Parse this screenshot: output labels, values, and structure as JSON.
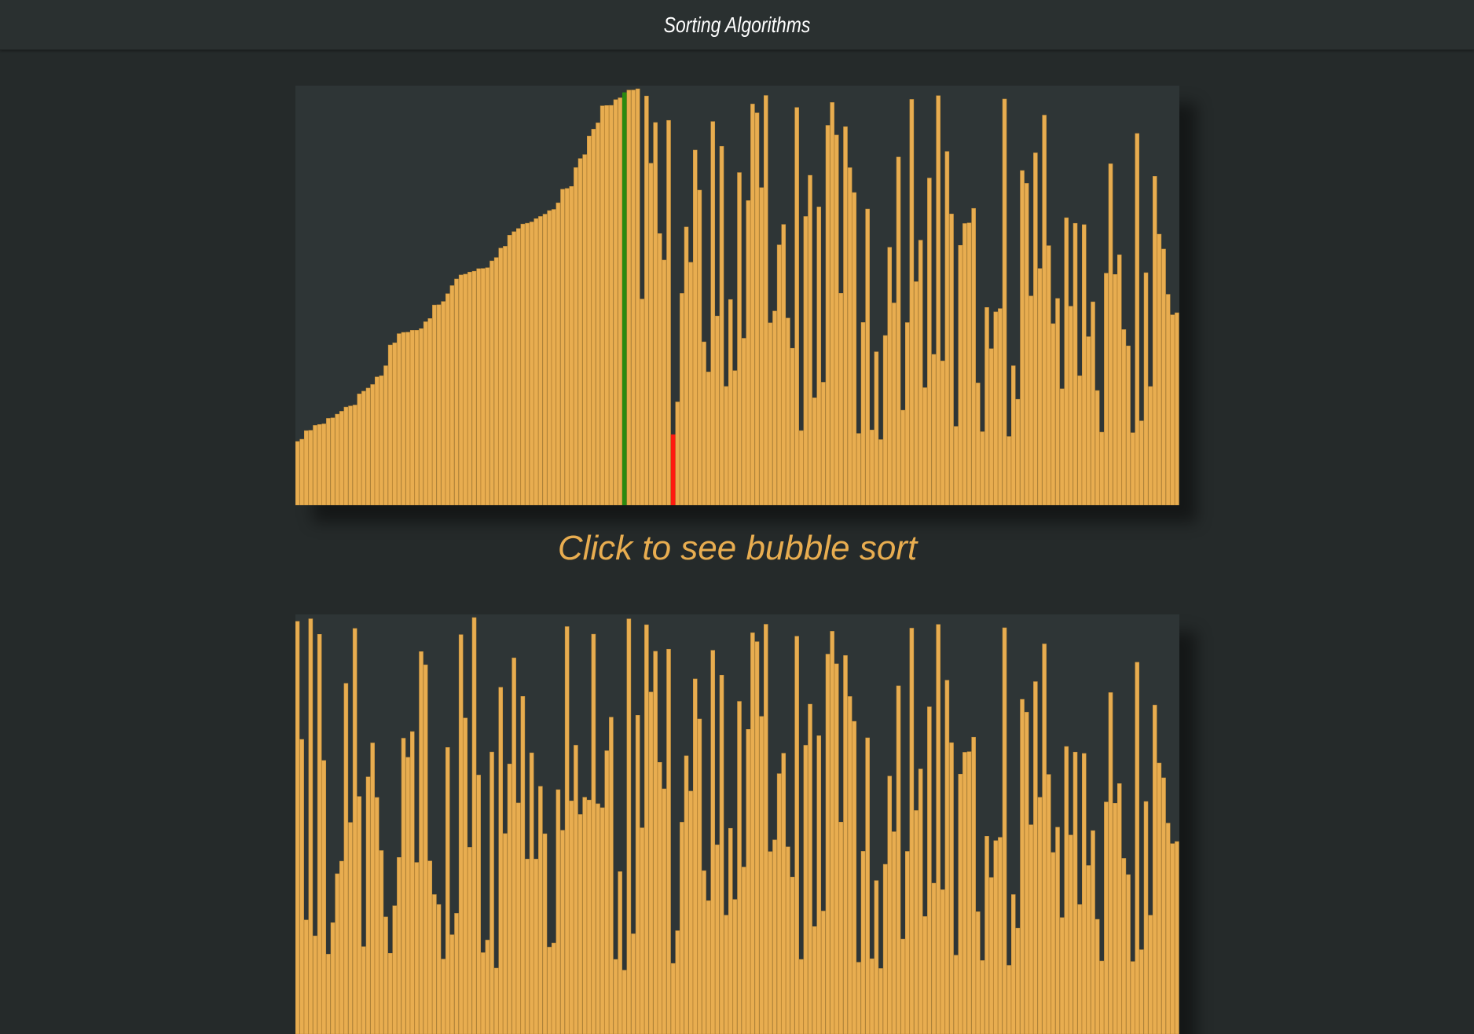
{
  "header": {
    "title": "Sorting Algorithms"
  },
  "visualizations": [
    {
      "caption": "Click to see bubble sort",
      "sorted_fill": 0.39,
      "compare_index": 74,
      "current_index": 85
    },
    {
      "caption": "",
      "sorted_fill": 0.0,
      "compare_index": -1,
      "current_index": -1
    }
  ],
  "colors": {
    "background": "#252a2a",
    "header": "#2a3030",
    "panel": "#2e3536",
    "bar": "#e8ad50",
    "bar_edge": "#c89038",
    "compare_bar": "#2a8a10",
    "current_bar": "#ff1a10",
    "caption": "#e8ad50",
    "title": "#ffffff"
  }
}
